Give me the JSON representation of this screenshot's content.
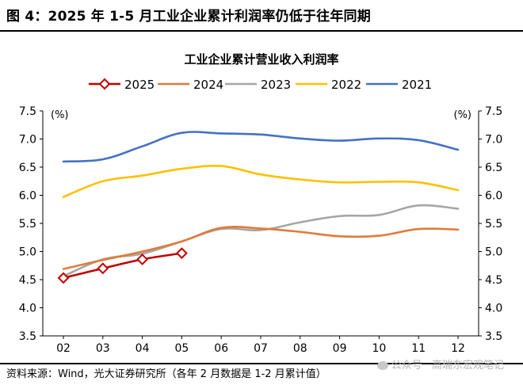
{
  "figure_title": "图 4：2025 年 1-5 月工业企业累计利润率仍低于往年同期",
  "source_note": "资料来源：Wind，光大证券研究所（各年 2 月数据是 1-2 月累计值）",
  "watermark": "公众号 · 高瑞东宏观笔记",
  "chart_data": {
    "type": "line",
    "title": "工业企业累计营业收入利润率",
    "left_unit": "(%)",
    "right_unit": "(%)",
    "categories": [
      "02",
      "03",
      "04",
      "05",
      "06",
      "07",
      "08",
      "09",
      "10",
      "11",
      "12"
    ],
    "ylim": [
      3.5,
      7.5
    ],
    "yticks": [
      "3.5",
      "4.0",
      "4.5",
      "5.0",
      "5.5",
      "6.0",
      "6.5",
      "7.0",
      "7.5"
    ],
    "grid": false,
    "legend_position": "top",
    "series": [
      {
        "name": "2025",
        "color": "#c00000",
        "marker": "diamond",
        "values": [
          4.53,
          4.7,
          4.86,
          4.97,
          null,
          null,
          null,
          null,
          null,
          null,
          null
        ]
      },
      {
        "name": "2024",
        "color": "#e07b39",
        "marker": "none",
        "values": [
          4.69,
          4.85,
          5.0,
          5.18,
          5.42,
          5.41,
          5.35,
          5.27,
          5.28,
          5.4,
          5.39
        ]
      },
      {
        "name": "2023",
        "color": "#a6a6a6",
        "marker": "none",
        "values": [
          4.56,
          4.86,
          4.96,
          5.18,
          5.4,
          5.38,
          5.52,
          5.63,
          5.65,
          5.82,
          5.76
        ]
      },
      {
        "name": "2022",
        "color": "#ffc000",
        "marker": "none",
        "values": [
          5.97,
          6.25,
          6.35,
          6.47,
          6.52,
          6.37,
          6.28,
          6.23,
          6.24,
          6.23,
          6.09
        ]
      },
      {
        "name": "2021",
        "color": "#4472c4",
        "marker": "none",
        "values": [
          6.6,
          6.64,
          6.87,
          7.11,
          7.1,
          7.08,
          7.01,
          6.97,
          7.01,
          6.98,
          6.81
        ]
      }
    ]
  }
}
